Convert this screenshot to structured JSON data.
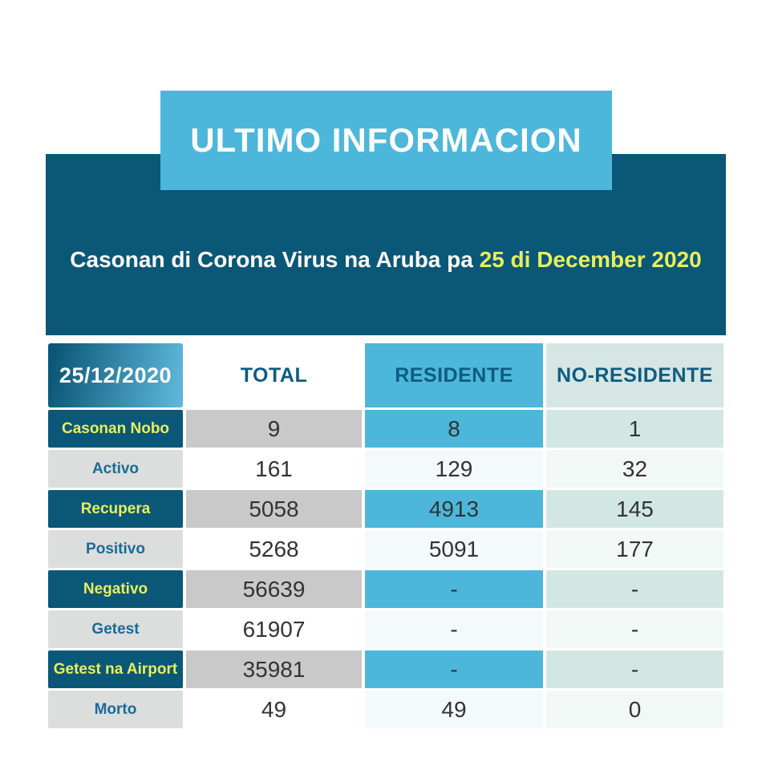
{
  "header": {
    "title": "ULTIMO INFORMACION",
    "subtitle_prefix": "Casonan di Corona Virus na Aruba pa ",
    "subtitle_date": "25 di December 2020"
  },
  "table": {
    "date_header": "25/12/2020",
    "columns": [
      "TOTAL",
      "RESIDENTE",
      "NO-RESIDENTE"
    ],
    "rows": [
      {
        "label": "Casonan Nobo",
        "total": "9",
        "residente": "8",
        "no_residente": "1"
      },
      {
        "label": "Activo",
        "total": "161",
        "residente": "129",
        "no_residente": "32"
      },
      {
        "label": "Recupera",
        "total": "5058",
        "residente": "4913",
        "no_residente": "145"
      },
      {
        "label": "Positivo",
        "total": "5268",
        "residente": "5091",
        "no_residente": "177"
      },
      {
        "label": "Negativo",
        "total": "56639",
        "residente": "-",
        "no_residente": "-"
      },
      {
        "label": "Getest",
        "total": "61907",
        "residente": "-",
        "no_residente": "-"
      },
      {
        "label": "Getest na Airport",
        "total": "35981",
        "residente": "-",
        "no_residente": "-"
      },
      {
        "label": "Morto",
        "total": "49",
        "residente": "49",
        "no_residente": "0"
      }
    ]
  },
  "colors": {
    "navy": "#0b5778",
    "mid_blue": "#4cb7da",
    "pale_teal": "#d5e6e3",
    "gray": "#c9c9c9",
    "label_gray": "#dcdddd",
    "yellow": "#e9ef5b",
    "header_text": "#0e5c81",
    "label_blue_text": "#1a6b96",
    "value_text": "#333333"
  },
  "chart_data": {
    "type": "table",
    "title": "ULTIMO INFORMACION",
    "subtitle": "Casonan di Corona Virus na Aruba pa 25 di December 2020",
    "date": "25/12/2020",
    "columns": [
      "TOTAL",
      "RESIDENTE",
      "NO-RESIDENTE"
    ],
    "rows": [
      {
        "label": "Casonan Nobo",
        "values": [
          9,
          8,
          1
        ]
      },
      {
        "label": "Activo",
        "values": [
          161,
          129,
          32
        ]
      },
      {
        "label": "Recupera",
        "values": [
          5058,
          4913,
          145
        ]
      },
      {
        "label": "Positivo",
        "values": [
          5268,
          5091,
          177
        ]
      },
      {
        "label": "Negativo",
        "values": [
          56639,
          null,
          null
        ]
      },
      {
        "label": "Getest",
        "values": [
          61907,
          null,
          null
        ]
      },
      {
        "label": "Getest na Airport",
        "values": [
          35981,
          null,
          null
        ]
      },
      {
        "label": "Morto",
        "values": [
          49,
          49,
          0
        ]
      }
    ],
    "layout": {
      "legend": false,
      "grid": false,
      "note": "dark/light alternating striped rows; dash means not reported"
    }
  }
}
